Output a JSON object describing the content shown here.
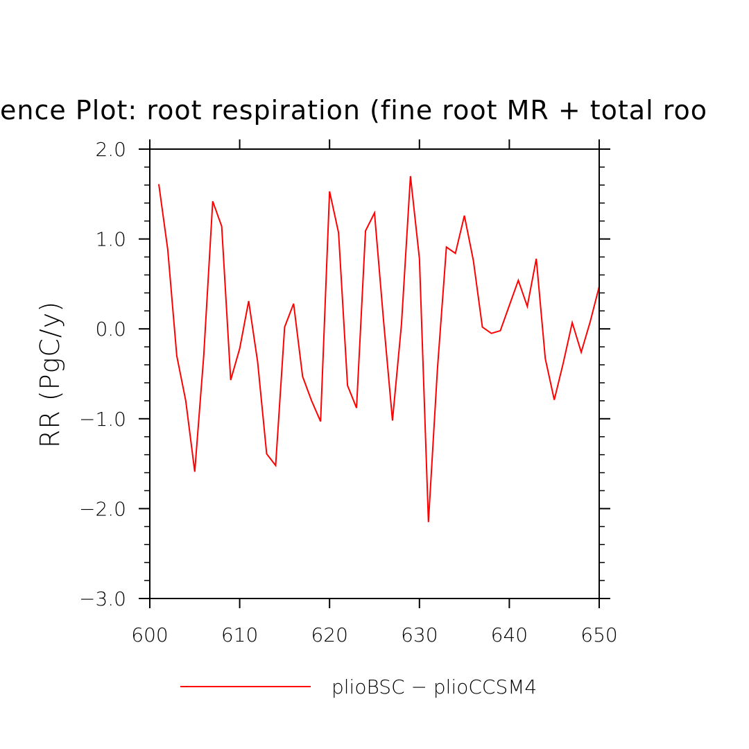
{
  "chart_data": {
    "type": "line",
    "title": "ence Plot: root respiration (fine root MR + total roo",
    "xlabel": "",
    "ylabel": "RR  (PgC/y)",
    "xlim": [
      600,
      650
    ],
    "ylim": [
      -3.0,
      2.0
    ],
    "x_ticks": [
      600,
      610,
      620,
      630,
      640,
      650
    ],
    "y_ticks": [
      "2.0",
      "1.0",
      "0.0",
      "−1.0",
      "−2.0",
      "−3.0"
    ],
    "y_tick_values": [
      2.0,
      1.0,
      0.0,
      -1.0,
      -2.0,
      -3.0
    ],
    "grid": false,
    "legend_position": "bottom",
    "series": [
      {
        "name": "plioBSC − plioCCSM4",
        "color": "#ff0000",
        "x": [
          601,
          602,
          603,
          604,
          605,
          606,
          607,
          608,
          609,
          610,
          611,
          612,
          613,
          614,
          615,
          616,
          617,
          618,
          619,
          620,
          621,
          622,
          623,
          624,
          625,
          626,
          627,
          628,
          629,
          630,
          631,
          632,
          633,
          634,
          635,
          636,
          637,
          638,
          639,
          640,
          641,
          642,
          643,
          644,
          645,
          646,
          647,
          648,
          649,
          650
        ],
        "values": [
          1.61,
          0.88,
          -0.3,
          -0.8,
          -1.59,
          -0.3,
          1.42,
          1.14,
          -0.57,
          -0.22,
          0.31,
          -0.37,
          -1.39,
          -1.52,
          0.02,
          0.28,
          -0.53,
          -0.8,
          -1.03,
          1.53,
          1.07,
          -0.63,
          -0.88,
          1.09,
          1.29,
          0.1,
          -1.02,
          0.05,
          1.7,
          0.78,
          -2.15,
          -0.45,
          0.91,
          0.84,
          1.26,
          0.76,
          0.02,
          -0.05,
          -0.02,
          0.26,
          0.54,
          0.25,
          0.78,
          -0.33,
          -0.79,
          -0.38,
          0.07,
          -0.26,
          0.08,
          0.47
        ]
      }
    ]
  }
}
